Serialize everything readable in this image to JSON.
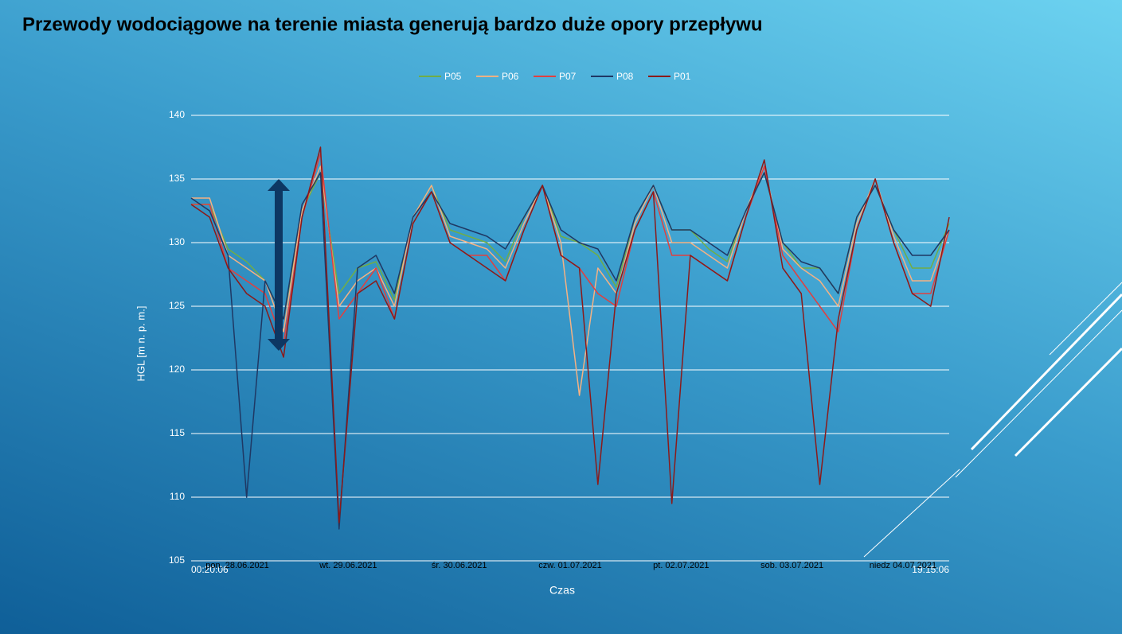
{
  "chart_data": {
    "type": "line",
    "title": "Przewody wodociągowe na terenie miasta generują bardzo duże opory przepływu",
    "x_label": "Czas",
    "y_label": "HGL [m n. p. m.]",
    "categories": [
      "00:20:06",
      null,
      null,
      null,
      null,
      null,
      null,
      null,
      null,
      null,
      null,
      null,
      null,
      null,
      null,
      null,
      null,
      null,
      null,
      null,
      null,
      null,
      null,
      null,
      null,
      null,
      null,
      null,
      null,
      null,
      null,
      null,
      null,
      null,
      null,
      null,
      null,
      null,
      null,
      null,
      null,
      "19:15:06"
    ],
    "category_groups": [
      {
        "label": "pon. 28.06.2021",
        "start": 0,
        "end": 5
      },
      {
        "label": "wt. 29.06.2021",
        "start": 6,
        "end": 11
      },
      {
        "label": "śr. 30.06.2021",
        "start": 12,
        "end": 17
      },
      {
        "label": "czw. 01.07.2021",
        "start": 18,
        "end": 23
      },
      {
        "label": "pt. 02.07.2021",
        "start": 24,
        "end": 29
      },
      {
        "label": "sob. 03.07.2021",
        "start": 30,
        "end": 35
      },
      {
        "label": "niedz 04.07.2021",
        "start": 36,
        "end": 41
      }
    ],
    "series": [
      {
        "name": "P05",
        "color": "#70ad47",
        "values": [
          133,
          133,
          129.5,
          128.5,
          127,
          124,
          132.5,
          135.5,
          126,
          128,
          128.5,
          125.5,
          132,
          134.5,
          131,
          130.5,
          130,
          128.5,
          132,
          134.5,
          130.5,
          130,
          129,
          126.5,
          132,
          134.5,
          131,
          131,
          129.5,
          128.5,
          132.5,
          135.5,
          130,
          128,
          128,
          126,
          132,
          134.5,
          131,
          128,
          128,
          131.5
        ]
      },
      {
        "name": "P06",
        "color": "#f4b183",
        "values": [
          133.5,
          133.5,
          129,
          128,
          127,
          123,
          132.5,
          136,
          125,
          127,
          128,
          125,
          132,
          134.5,
          130.5,
          130,
          129.5,
          128,
          131.5,
          134.5,
          130,
          118,
          128,
          126,
          131.5,
          134.5,
          130,
          130,
          129,
          128,
          132.5,
          136,
          129.5,
          128,
          127,
          125,
          131.5,
          135,
          130.5,
          127,
          127,
          131
        ]
      },
      {
        "name": "P07",
        "color": "#e04040",
        "values": [
          133,
          133,
          128,
          127,
          126,
          122,
          132,
          137,
          124,
          126,
          128,
          124,
          131.5,
          134,
          130,
          129,
          129,
          127,
          131,
          134.5,
          129,
          128,
          126,
          125,
          131,
          134,
          129,
          129,
          128,
          127,
          132,
          136,
          129,
          127,
          125,
          123,
          131,
          135,
          130,
          126,
          126,
          131
        ]
      },
      {
        "name": "P08",
        "color": "#1f3864",
        "values": [
          133.5,
          132.5,
          129,
          110,
          127,
          124,
          133,
          135.5,
          107.5,
          128,
          129,
          126,
          132,
          134,
          131.5,
          131,
          130.5,
          129.5,
          132,
          134.5,
          131,
          130,
          129.5,
          127,
          132,
          134.5,
          131,
          131,
          130,
          129,
          132.5,
          135.5,
          130,
          128.5,
          128,
          126,
          132,
          134.5,
          131,
          129,
          129,
          131
        ]
      },
      {
        "name": "P01",
        "color": "#8b1a1a",
        "values": [
          133,
          132,
          128,
          126,
          125,
          121,
          132,
          137.5,
          108,
          126,
          127,
          124,
          131.5,
          134,
          130,
          129,
          128,
          127,
          131,
          134.5,
          129,
          128,
          111,
          126,
          131,
          134,
          109.5,
          129,
          128,
          127,
          132,
          136.5,
          128,
          126,
          111,
          124,
          131,
          135,
          130,
          126,
          125,
          132
        ]
      }
    ],
    "ylim": [
      105,
      140
    ],
    "yticks": [
      105,
      110,
      115,
      120,
      125,
      130,
      135,
      140
    ],
    "grid": true,
    "legend": "top"
  }
}
